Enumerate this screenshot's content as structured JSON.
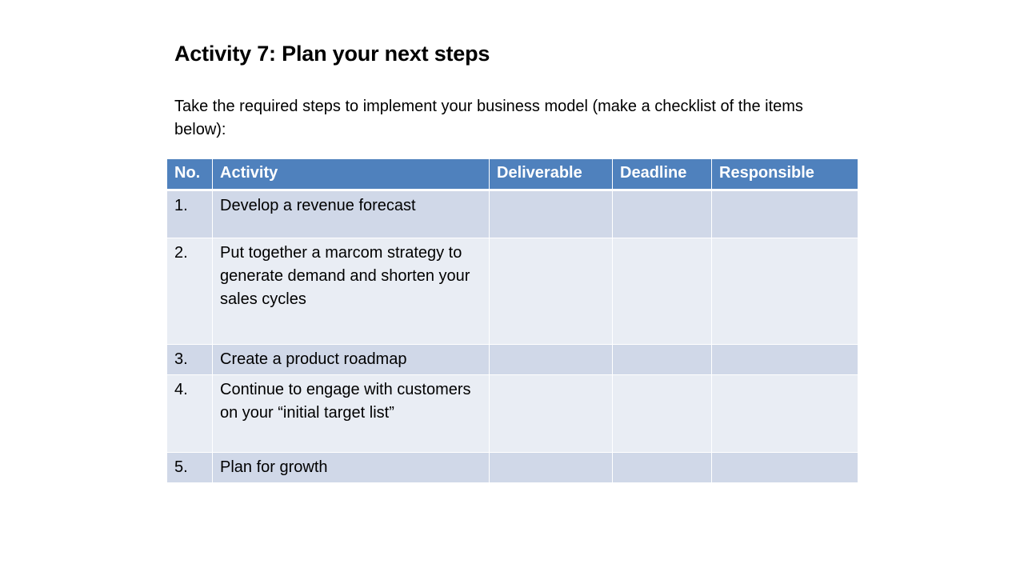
{
  "title": "Activity 7: Plan your next steps",
  "intro": "Take the required steps to implement your business model (make a checklist of the items below):",
  "table": {
    "headers": {
      "no": "No.",
      "activity": "Activity",
      "deliverable": "Deliverable",
      "deadline": "Deadline",
      "responsible": "Responsible"
    },
    "rows": [
      {
        "no": "1.",
        "activity": "Develop a revenue forecast",
        "deliverable": "",
        "deadline": "",
        "responsible": ""
      },
      {
        "no": "2.",
        "activity": "Put together a marcom strategy to generate demand and shorten your sales cycles",
        "deliverable": "",
        "deadline": "",
        "responsible": ""
      },
      {
        "no": "3.",
        "activity": "Create a product roadmap",
        "deliverable": "",
        "deadline": "",
        "responsible": ""
      },
      {
        "no": "4.",
        "activity": "Continue to engage with customers on your “initial target list”",
        "deliverable": "",
        "deadline": "",
        "responsible": ""
      },
      {
        "no": "5.",
        "activity": "Plan for growth",
        "deliverable": "",
        "deadline": "",
        "responsible": ""
      }
    ]
  },
  "colors": {
    "header_bg": "#4f81bd",
    "row_dark": "#d0d8e8",
    "row_light": "#e9edf4"
  }
}
